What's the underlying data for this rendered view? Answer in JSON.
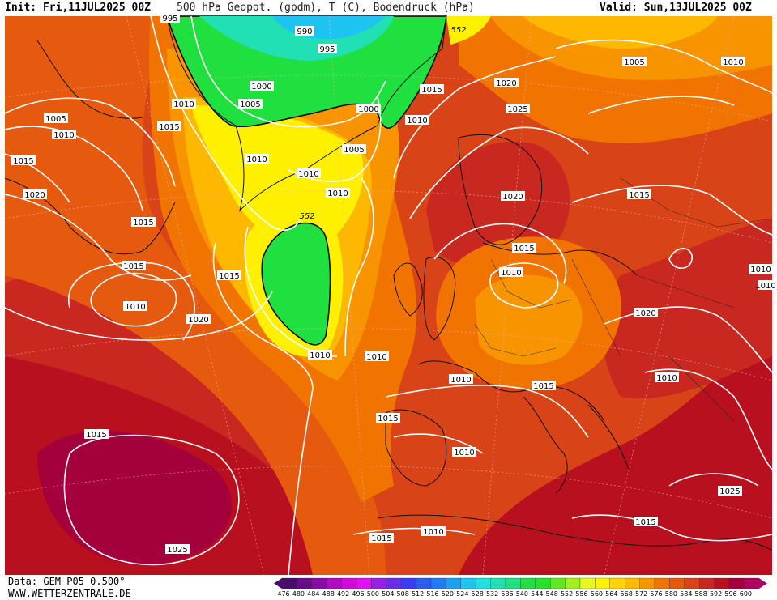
{
  "header": {
    "init": "Init: Fri,11JUL2025 00Z",
    "title": "500 hPa Geopot. (gpdm), T (C), Bodendruck (hPa)",
    "valid": "Valid: Sun,13JUL2025 00Z"
  },
  "footer": {
    "source": "Data: GEM P05 0.500°",
    "site": "WWW.WETTERZENTRALE.DE"
  },
  "scale": {
    "labels": [
      "476",
      "480",
      "484",
      "488",
      "492",
      "496",
      "500",
      "504",
      "508",
      "512",
      "516",
      "520",
      "524",
      "528",
      "532",
      "536",
      "540",
      "544",
      "548",
      "552",
      "556",
      "560",
      "564",
      "568",
      "572",
      "576",
      "580",
      "584",
      "588",
      "592",
      "596",
      "600"
    ],
    "colors": [
      "#4b0a6e",
      "#6a0a8a",
      "#8a0aa6",
      "#b00ac2",
      "#d20ad8",
      "#e010f0",
      "#9a20e6",
      "#6a2ee6",
      "#3a3ef0",
      "#2a5ef0",
      "#1e7ef0",
      "#1ea0f0",
      "#1ec4f0",
      "#20e0e0",
      "#20e0b4",
      "#20e080",
      "#20e040",
      "#28e028",
      "#60e820",
      "#a0f020",
      "#e6f820",
      "#fff000",
      "#ffd400",
      "#ffb800",
      "#f79400",
      "#f27400",
      "#e65a10",
      "#d84418",
      "#c82820",
      "#b8101e",
      "#a4003c",
      "#b00060"
    ]
  },
  "map": {
    "contour_labels": [
      "995",
      "990",
      "995",
      "552",
      "1000",
      "1005",
      "1010",
      "1015",
      "1005",
      "1010",
      "1015",
      "1020",
      "1010",
      "1010",
      "1015",
      "1010",
      "1020",
      "1015",
      "1005",
      "1010",
      "1000",
      "552",
      "1015",
      "1010",
      "1020",
      "1025",
      "1005",
      "1010",
      "1020",
      "1015",
      "1015",
      "1010",
      "1015",
      "1010",
      "1010",
      "1010",
      "1010",
      "1010",
      "1015",
      "1020",
      "1015",
      "1010",
      "1015",
      "1025",
      "1025",
      "1015",
      "1010",
      "1010",
      "1015",
      "1010"
    ],
    "colors": {
      "deep_red": "#b8101e",
      "red": "#c82820",
      "red_orange": "#d84418",
      "orange_dark": "#e65a10",
      "orange": "#f27400",
      "light_orange": "#f79400",
      "amber": "#ffb800",
      "yellow": "#fff000",
      "green": "#20e040",
      "cyan": "#1ec4f0",
      "magenta_red": "#a4003c"
    }
  }
}
